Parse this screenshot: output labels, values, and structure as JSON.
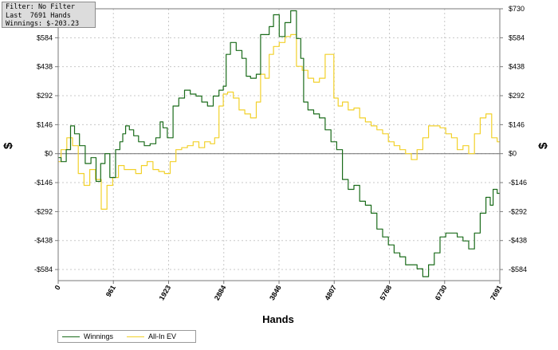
{
  "info": {
    "filter": "Filter: No Filter",
    "hands": "Last  7691 Hands",
    "winnings": "Winnings: $-203.23"
  },
  "legend": {
    "winnings": "Winnings",
    "allin": "All-In EV"
  },
  "colors": {
    "winnings": "#1a6b1a",
    "allin": "#f2d12a",
    "grid": "#c8c8c8",
    "zero": "#6e6e6e"
  },
  "chart_data": {
    "type": "line",
    "title": "",
    "xlabel": "Hands",
    "ylabel": "$",
    "y2label": "$",
    "xlim": [
      0,
      7691
    ],
    "ylim": [
      -640,
      730
    ],
    "grid": true,
    "legend_position": "bottom-left",
    "x_ticks": [
      0,
      961,
      1923,
      2884,
      3846,
      4807,
      5768,
      6730,
      7691
    ],
    "x_tick_labels": [
      "0",
      "961",
      "1923",
      "2884",
      "3846",
      "4807",
      "5768",
      "6730",
      "7691"
    ],
    "y_ticks": [
      730,
      584,
      438,
      292,
      146,
      0,
      -146,
      -292,
      -438,
      -584
    ],
    "y_tick_labels": [
      "$730",
      "$584",
      "$438",
      "$292",
      "$146",
      "$0",
      "-$146",
      "-$292",
      "-$438",
      "-$584"
    ],
    "series": [
      {
        "name": "Winnings",
        "x": [
          0,
          100,
          180,
          250,
          320,
          420,
          520,
          620,
          700,
          780,
          850,
          950,
          1050,
          1100,
          1150,
          1200,
          1280,
          1350,
          1450,
          1550,
          1650,
          1750,
          1800,
          1850,
          1950,
          2050,
          2150,
          2250,
          2350,
          2450,
          2550,
          2650,
          2750,
          2850,
          2900,
          2950,
          3050,
          3150,
          3250,
          3300,
          3400,
          3500,
          3550,
          3650,
          3700,
          3800,
          3900,
          4000,
          4100,
          4200,
          4250,
          4300,
          4400,
          4500,
          4600,
          4700,
          4800,
          4900,
          5000,
          5100,
          5200,
          5300,
          5400,
          5500,
          5600,
          5700,
          5800,
          5900,
          6000,
          6100,
          6200,
          6300,
          6400,
          6500,
          6600,
          6700,
          6800,
          6900,
          7000,
          7100,
          7200,
          7300,
          7400,
          7500,
          7550,
          7600,
          7691
        ],
        "values": [
          -20,
          -40,
          20,
          140,
          100,
          40,
          -50,
          -20,
          -140,
          -50,
          0,
          -120,
          20,
          60,
          100,
          140,
          120,
          90,
          60,
          40,
          50,
          80,
          160,
          130,
          80,
          240,
          280,
          320,
          300,
          290,
          260,
          240,
          290,
          320,
          340,
          500,
          560,
          520,
          480,
          390,
          380,
          400,
          600,
          600,
          640,
          700,
          590,
          660,
          720,
          580,
          480,
          260,
          220,
          200,
          180,
          120,
          60,
          20,
          -130,
          -180,
          -160,
          -240,
          -260,
          -300,
          -380,
          -420,
          -460,
          -500,
          -520,
          -560,
          -560,
          -580,
          -620,
          -560,
          -500,
          -420,
          -400,
          -400,
          -420,
          -440,
          -480,
          -400,
          -300,
          -220,
          -260,
          -180,
          -200
        ]
      },
      {
        "name": "All-In EV",
        "x": [
          0,
          100,
          200,
          300,
          400,
          500,
          600,
          700,
          800,
          900,
          1000,
          1100,
          1200,
          1300,
          1400,
          1500,
          1600,
          1700,
          1800,
          1900,
          2000,
          2100,
          2200,
          2300,
          2400,
          2500,
          2600,
          2700,
          2750,
          2850,
          2900,
          3000,
          3100,
          3200,
          3300,
          3400,
          3500,
          3550,
          3650,
          3700,
          3800,
          3900,
          4000,
          4100,
          4200,
          4300,
          4400,
          4500,
          4600,
          4700,
          4750,
          4850,
          4900,
          5000,
          5100,
          5200,
          5300,
          5400,
          5500,
          5600,
          5700,
          5800,
          5900,
          6000,
          6100,
          6200,
          6300,
          6400,
          6500,
          6600,
          6700,
          6800,
          6900,
          7000,
          7100,
          7200,
          7300,
          7400,
          7500,
          7600,
          7691
        ],
        "values": [
          -40,
          20,
          80,
          40,
          -100,
          -160,
          -80,
          -130,
          -280,
          -160,
          -120,
          -60,
          -80,
          -80,
          -100,
          -60,
          -40,
          -80,
          -90,
          -100,
          -40,
          20,
          30,
          40,
          60,
          30,
          60,
          50,
          80,
          240,
          300,
          310,
          280,
          220,
          200,
          180,
          260,
          400,
          380,
          500,
          540,
          560,
          590,
          600,
          440,
          420,
          380,
          360,
          380,
          500,
          500,
          280,
          240,
          260,
          220,
          230,
          180,
          160,
          140,
          120,
          100,
          60,
          40,
          20,
          0,
          -30,
          20,
          80,
          140,
          140,
          130,
          100,
          80,
          20,
          40,
          0,
          100,
          180,
          200,
          80,
          60
        ]
      }
    ]
  }
}
